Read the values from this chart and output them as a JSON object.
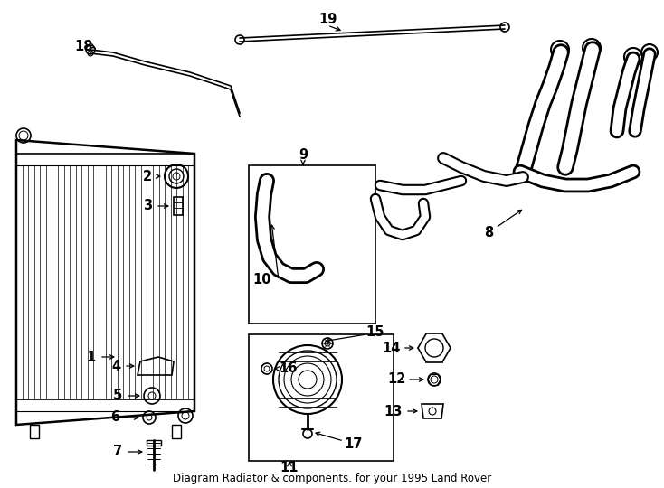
{
  "title": "Diagram Radiator & components. for your 1995 Land Rover",
  "bg_color": "#ffffff",
  "lc": "#000000",
  "fig_w": 7.34,
  "fig_h": 5.4,
  "dpi": 100
}
